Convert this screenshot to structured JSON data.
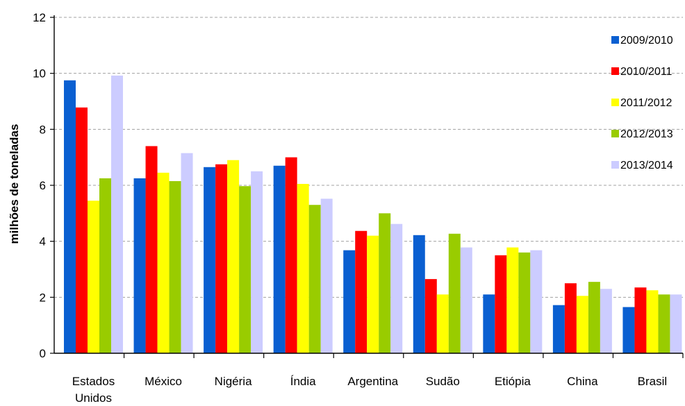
{
  "chart_data": {
    "type": "bar",
    "title": "",
    "xlabel": "",
    "ylabel": "milhões de toneladas",
    "ylim": [
      0,
      12
    ],
    "yticks": [
      0,
      2,
      4,
      6,
      8,
      10,
      12
    ],
    "grid": "horizontal-dashed",
    "legend_position": "right",
    "categories": [
      [
        "Estados",
        "Unidos"
      ],
      [
        "México"
      ],
      [
        "Nigéria"
      ],
      [
        "Índia"
      ],
      [
        "Argentina"
      ],
      [
        "Sudão"
      ],
      [
        "Etiópia"
      ],
      [
        "China"
      ],
      [
        "Brasil"
      ]
    ],
    "series": [
      {
        "name": "2009/2010",
        "color": "#0a5fd1",
        "values": [
          9.75,
          6.25,
          6.65,
          6.7,
          3.68,
          4.22,
          2.1,
          1.72,
          1.65
        ]
      },
      {
        "name": "2010/2011",
        "color": "#ff0000",
        "values": [
          8.78,
          7.4,
          6.75,
          7.0,
          4.37,
          2.65,
          3.5,
          2.5,
          2.35
        ]
      },
      {
        "name": "2011/2012",
        "color": "#ffff00",
        "values": [
          5.45,
          6.45,
          6.9,
          6.05,
          4.2,
          2.1,
          3.78,
          2.05,
          2.25
        ]
      },
      {
        "name": "2012/2013",
        "color": "#99cc00",
        "values": [
          6.25,
          6.15,
          5.97,
          5.3,
          5.0,
          4.27,
          3.6,
          2.55,
          2.1
        ]
      },
      {
        "name": "2013/2014",
        "color": "#ccccff",
        "values": [
          9.92,
          7.15,
          6.5,
          5.52,
          4.62,
          3.78,
          3.68,
          2.3,
          2.1
        ]
      }
    ]
  }
}
